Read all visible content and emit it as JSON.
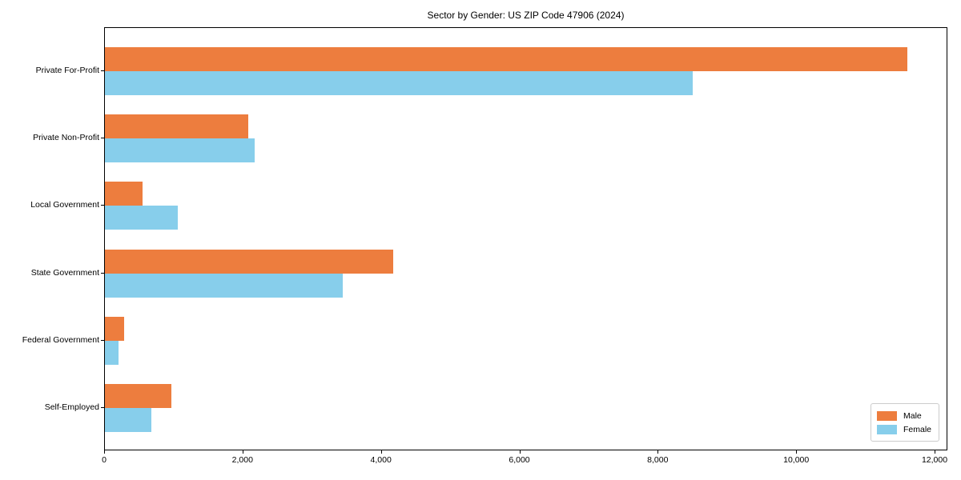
{
  "title": "Sector by Gender: US ZIP Code 47906 (2024)",
  "colors": {
    "male": "#ED7D3E",
    "female": "#87CEEB",
    "spine": "#000000",
    "legend_border": "#CCCCCC",
    "background": "#FFFFFF",
    "text": "#000000"
  },
  "legend": {
    "position": "lower right",
    "items": [
      {
        "label": "Male",
        "color": "#ED7D3E"
      },
      {
        "label": "Female",
        "color": "#87CEEB"
      }
    ]
  },
  "chart_data": {
    "type": "bar",
    "orientation": "horizontal",
    "title": "Sector by Gender: US ZIP Code 47906 (2024)",
    "xlabel": "",
    "ylabel": "",
    "categories": [
      "Private For-Profit",
      "Private Non-Profit",
      "Local Government",
      "State Government",
      "Federal Government",
      "Self-Employed"
    ],
    "series": [
      {
        "name": "Male",
        "color": "#ED7D3E",
        "values": [
          11600,
          2070,
          545,
          4165,
          280,
          960
        ]
      },
      {
        "name": "Female",
        "color": "#87CEEB",
        "values": [
          8490,
          2160,
          1050,
          3440,
          195,
          670
        ]
      }
    ],
    "xlim": [
      0,
      12185
    ],
    "xticks": [
      0,
      2000,
      4000,
      6000,
      8000,
      10000,
      12000
    ],
    "xtick_labels": [
      "0",
      "2,000",
      "4,000",
      "6,000",
      "8,000",
      "10,000",
      "12,000"
    ],
    "grid": false,
    "legend_position": "lower right"
  }
}
